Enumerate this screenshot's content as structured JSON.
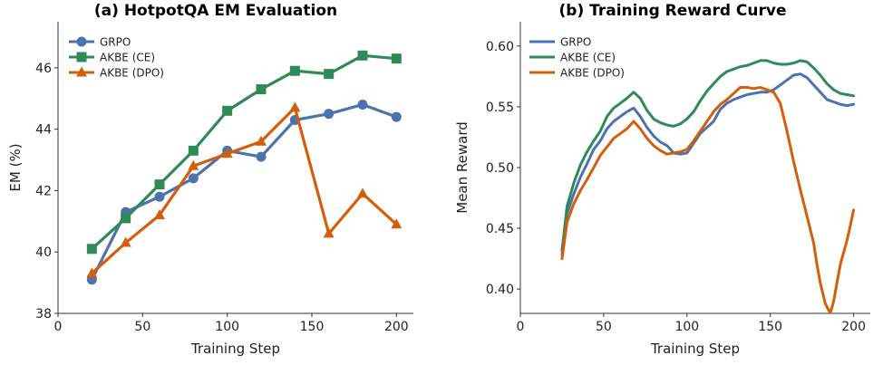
{
  "colors": {
    "grpo": "#4c72b0",
    "ce": "#2e8b57",
    "dpo": "#d35f0c"
  },
  "chart_data": [
    {
      "type": "line",
      "title": "(a) HotpotQA EM Evaluation",
      "xlabel": "Training Step",
      "ylabel": "EM (%)",
      "xlim": [
        0,
        210
      ],
      "ylim": [
        38,
        47.5
      ],
      "xticks": [
        0,
        50,
        100,
        150,
        200
      ],
      "yticks": [
        38,
        40,
        42,
        44,
        46
      ],
      "legend_position": "top-left",
      "x": [
        20,
        40,
        60,
        80,
        100,
        120,
        140,
        160,
        180,
        200
      ],
      "series": [
        {
          "name": "GRPO",
          "marker": "circle",
          "values": [
            39.1,
            41.3,
            41.8,
            42.4,
            43.3,
            43.1,
            44.3,
            44.5,
            44.8,
            44.4
          ]
        },
        {
          "name": "AKBE (CE)",
          "marker": "square",
          "values": [
            40.1,
            41.1,
            42.2,
            43.3,
            44.6,
            45.3,
            45.9,
            45.8,
            46.4,
            46.3
          ]
        },
        {
          "name": "AKBE (DPO)",
          "marker": "triangle",
          "values": [
            39.3,
            40.3,
            41.2,
            42.8,
            43.2,
            43.6,
            44.7,
            40.6,
            41.9,
            40.9
          ]
        }
      ]
    },
    {
      "type": "line",
      "title": "(b) Training Reward Curve",
      "xlabel": "Training Step",
      "ylabel": "Mean Reward",
      "xlim": [
        0,
        210
      ],
      "ylim": [
        0.38,
        0.62
      ],
      "xticks": [
        0,
        50,
        100,
        150,
        200
      ],
      "yticks": [
        0.4,
        0.45,
        0.5,
        0.55,
        0.6
      ],
      "legend_position": "top-left",
      "series": [
        {
          "name": "GRPO",
          "points": [
            [
              25,
              0.428
            ],
            [
              28,
              0.462
            ],
            [
              32,
              0.478
            ],
            [
              36,
              0.492
            ],
            [
              40,
              0.503
            ],
            [
              44,
              0.515
            ],
            [
              48,
              0.522
            ],
            [
              52,
              0.532
            ],
            [
              56,
              0.538
            ],
            [
              60,
              0.542
            ],
            [
              64,
              0.546
            ],
            [
              68,
              0.549
            ],
            [
              72,
              0.542
            ],
            [
              76,
              0.533
            ],
            [
              80,
              0.526
            ],
            [
              84,
              0.521
            ],
            [
              88,
              0.518
            ],
            [
              92,
              0.512
            ],
            [
              96,
              0.511
            ],
            [
              100,
              0.512
            ],
            [
              104,
              0.52
            ],
            [
              108,
              0.528
            ],
            [
              112,
              0.533
            ],
            [
              116,
              0.538
            ],
            [
              120,
              0.548
            ],
            [
              124,
              0.553
            ],
            [
              128,
              0.556
            ],
            [
              132,
              0.558
            ],
            [
              136,
              0.56
            ],
            [
              140,
              0.561
            ],
            [
              144,
              0.562
            ],
            [
              148,
              0.562
            ],
            [
              152,
              0.564
            ],
            [
              156,
              0.568
            ],
            [
              160,
              0.572
            ],
            [
              164,
              0.576
            ],
            [
              168,
              0.577
            ],
            [
              172,
              0.574
            ],
            [
              176,
              0.568
            ],
            [
              180,
              0.562
            ],
            [
              184,
              0.556
            ],
            [
              188,
              0.554
            ],
            [
              192,
              0.552
            ],
            [
              196,
              0.551
            ],
            [
              200,
              0.552
            ]
          ]
        },
        {
          "name": "AKBE (CE)",
          "points": [
            [
              25,
              0.432
            ],
            [
              28,
              0.468
            ],
            [
              32,
              0.487
            ],
            [
              36,
              0.502
            ],
            [
              40,
              0.513
            ],
            [
              44,
              0.522
            ],
            [
              48,
              0.53
            ],
            [
              52,
              0.542
            ],
            [
              56,
              0.549
            ],
            [
              60,
              0.553
            ],
            [
              64,
              0.557
            ],
            [
              68,
              0.562
            ],
            [
              72,
              0.557
            ],
            [
              76,
              0.547
            ],
            [
              80,
              0.54
            ],
            [
              84,
              0.537
            ],
            [
              88,
              0.535
            ],
            [
              92,
              0.534
            ],
            [
              96,
              0.536
            ],
            [
              100,
              0.54
            ],
            [
              104,
              0.546
            ],
            [
              108,
              0.555
            ],
            [
              112,
              0.563
            ],
            [
              116,
              0.569
            ],
            [
              120,
              0.575
            ],
            [
              124,
              0.579
            ],
            [
              128,
              0.581
            ],
            [
              132,
              0.583
            ],
            [
              136,
              0.584
            ],
            [
              140,
              0.586
            ],
            [
              144,
              0.588
            ],
            [
              148,
              0.588
            ],
            [
              152,
              0.586
            ],
            [
              156,
              0.585
            ],
            [
              160,
              0.585
            ],
            [
              164,
              0.586
            ],
            [
              168,
              0.588
            ],
            [
              172,
              0.587
            ],
            [
              176,
              0.582
            ],
            [
              180,
              0.576
            ],
            [
              184,
              0.569
            ],
            [
              188,
              0.564
            ],
            [
              192,
              0.561
            ],
            [
              196,
              0.56
            ],
            [
              200,
              0.559
            ]
          ]
        },
        {
          "name": "AKBE (DPO)",
          "points": [
            [
              25,
              0.425
            ],
            [
              28,
              0.455
            ],
            [
              32,
              0.47
            ],
            [
              36,
              0.481
            ],
            [
              40,
              0.49
            ],
            [
              44,
              0.5
            ],
            [
              48,
              0.51
            ],
            [
              52,
              0.517
            ],
            [
              56,
              0.524
            ],
            [
              60,
              0.528
            ],
            [
              64,
              0.532
            ],
            [
              68,
              0.538
            ],
            [
              72,
              0.532
            ],
            [
              76,
              0.524
            ],
            [
              80,
              0.518
            ],
            [
              84,
              0.514
            ],
            [
              88,
              0.511
            ],
            [
              92,
              0.512
            ],
            [
              96,
              0.513
            ],
            [
              100,
              0.515
            ],
            [
              104,
              0.522
            ],
            [
              108,
              0.53
            ],
            [
              112,
              0.538
            ],
            [
              116,
              0.546
            ],
            [
              120,
              0.552
            ],
            [
              124,
              0.556
            ],
            [
              128,
              0.561
            ],
            [
              132,
              0.566
            ],
            [
              136,
              0.566
            ],
            [
              140,
              0.565
            ],
            [
              144,
              0.566
            ],
            [
              148,
              0.564
            ],
            [
              152,
              0.562
            ],
            [
              156,
              0.553
            ],
            [
              160,
              0.53
            ],
            [
              164,
              0.505
            ],
            [
              168,
              0.482
            ],
            [
              172,
              0.46
            ],
            [
              176,
              0.438
            ],
            [
              178,
              0.42
            ],
            [
              180,
              0.405
            ],
            [
              183,
              0.388
            ],
            [
              186,
              0.38
            ],
            [
              188,
              0.39
            ],
            [
              190,
              0.405
            ],
            [
              192,
              0.42
            ],
            [
              194,
              0.43
            ],
            [
              196,
              0.44
            ],
            [
              198,
              0.452
            ],
            [
              200,
              0.465
            ]
          ]
        }
      ]
    }
  ]
}
